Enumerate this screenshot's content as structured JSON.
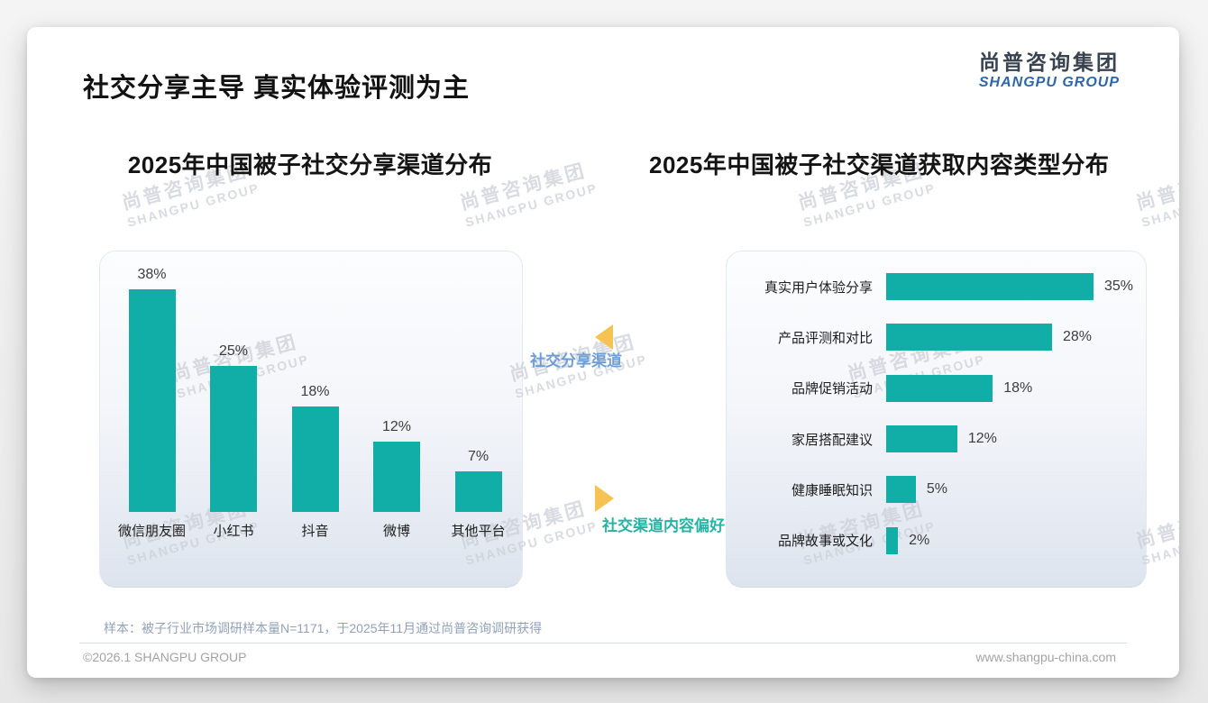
{
  "page": {
    "title": "社交分享主导 真实体验评测为主",
    "logo": {
      "cn": "尚普咨询集团",
      "en": "SHANGPU GROUP"
    },
    "watermark": {
      "cn": "尚普咨询集团",
      "en": "SHANGPU GROUP"
    },
    "annotations": [
      {
        "label": "社交分享渠道",
        "color": "#6f9ed6",
        "arrow": "left",
        "arrow_color": "#f6c252"
      },
      {
        "label": "社交渠道内容偏好",
        "color": "#27b3a3",
        "arrow": "right",
        "arrow_color": "#f6c252"
      }
    ],
    "footer": {
      "sample_note": "样本：被子行业市场调研样本量N=1171，于2025年11月通过尚普咨询调研获得",
      "copyright": "©2026.1 SHANGPU GROUP",
      "website": "www.shangpu-china.com"
    },
    "accent_teal": "#10aea6"
  },
  "chart_data": [
    {
      "type": "bar",
      "orientation": "vertical",
      "title": "2025年中国被子社交分享渠道分布",
      "categories": [
        "微信朋友圈",
        "小红书",
        "抖音",
        "微博",
        "其他平台"
      ],
      "values": [
        38,
        25,
        18,
        12,
        7
      ],
      "data_labels": [
        "38%",
        "25%",
        "18%",
        "12%",
        "7%"
      ],
      "unit": "%",
      "ylim": [
        0,
        40
      ],
      "grid": false,
      "bar_color": "#10aea6"
    },
    {
      "type": "bar",
      "orientation": "horizontal",
      "title": "2025年中国被子社交渠道获取内容类型分布",
      "categories": [
        "真实用户体验分享",
        "产品评测和对比",
        "品牌促销活动",
        "家居搭配建议",
        "健康睡眠知识",
        "品牌故事或文化"
      ],
      "values": [
        35,
        28,
        18,
        12,
        5,
        2
      ],
      "data_labels": [
        "35%",
        "28%",
        "18%",
        "12%",
        "5%",
        "2%"
      ],
      "unit": "%",
      "xlim": [
        0,
        40
      ],
      "grid": false,
      "bar_color": "#10aea6"
    }
  ]
}
